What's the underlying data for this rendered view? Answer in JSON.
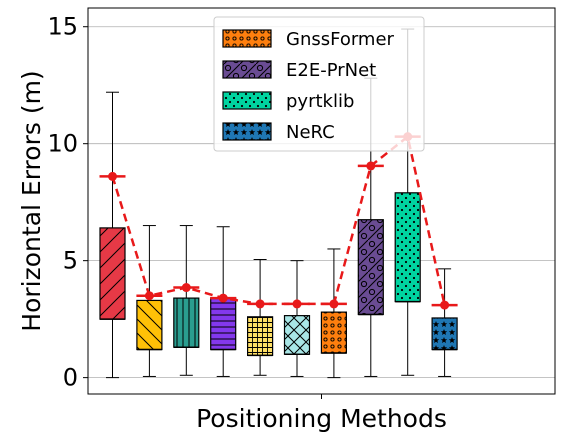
{
  "chart_data": {
    "type": "box",
    "xlabel": "Positioning Methods",
    "ylabel": "Horizontal Errors (m)",
    "ylim": [
      -0.7,
      15.8
    ],
    "yticks": [
      0,
      5,
      10,
      15
    ],
    "grid": "horizontal",
    "legend_position": "top-center",
    "legend": [
      {
        "label": "GnssFormer",
        "color": "#ff7f0e",
        "pattern": "circles"
      },
      {
        "label": "E2E-PrNet",
        "color": "#6a4c93",
        "pattern": "slash-circles"
      },
      {
        "label": "pyrtklib",
        "color": "#00d4a0",
        "pattern": "dots"
      },
      {
        "label": "NeRC",
        "color": "#1f77b4",
        "pattern": "stars"
      }
    ],
    "boxes": [
      {
        "color": "#e63946",
        "pattern": "slash",
        "whislo": 0.0,
        "q1": 2.5,
        "med": 2.5,
        "q3": 6.4,
        "whishi": 12.2,
        "mean": 8.6
      },
      {
        "color": "#ffc107",
        "pattern": "backslash",
        "whislo": 0.05,
        "q1": 1.2,
        "med": 1.2,
        "q3": 3.3,
        "whishi": 6.5,
        "mean": 3.5
      },
      {
        "color": "#2a9d8f",
        "pattern": "vertical",
        "whislo": 0.1,
        "q1": 1.3,
        "med": 1.3,
        "q3": 3.4,
        "whishi": 6.5,
        "mean": 3.85
      },
      {
        "color": "#8338ec",
        "pattern": "horizontal",
        "whislo": 0.05,
        "q1": 1.2,
        "med": 1.2,
        "q3": 3.4,
        "whishi": 6.45,
        "mean": 3.4
      },
      {
        "color": "#ffe066",
        "pattern": "grid",
        "whislo": 0.1,
        "q1": 0.95,
        "med": 0.95,
        "q3": 2.6,
        "whishi": 5.05,
        "mean": 3.15
      },
      {
        "color": "#a8e6e6",
        "pattern": "crosshatch",
        "whislo": 0.05,
        "q1": 1.0,
        "med": 1.0,
        "q3": 2.65,
        "whishi": 5.0,
        "mean": 3.15
      },
      {
        "color": "#ff7f0e",
        "pattern": "circles",
        "whislo": 0.0,
        "q1": 1.05,
        "med": 1.05,
        "q3": 2.8,
        "whishi": 5.5,
        "mean": 3.15
      },
      {
        "color": "#6a4c93",
        "pattern": "slash-circles",
        "whislo": 0.05,
        "q1": 2.7,
        "med": 2.7,
        "q3": 6.75,
        "whishi": 12.8,
        "mean": 9.05
      },
      {
        "color": "#00d4a0",
        "pattern": "dots",
        "whislo": 0.1,
        "q1": 3.25,
        "med": 3.25,
        "q3": 7.9,
        "whishi": 14.9,
        "mean": 10.3
      },
      {
        "color": "#1f77b4",
        "pattern": "stars",
        "whislo": 0.05,
        "q1": 1.2,
        "med": 1.2,
        "q3": 2.55,
        "whishi": 4.65,
        "mean": 3.1
      }
    ],
    "mean_line_color": "#e8191a"
  }
}
